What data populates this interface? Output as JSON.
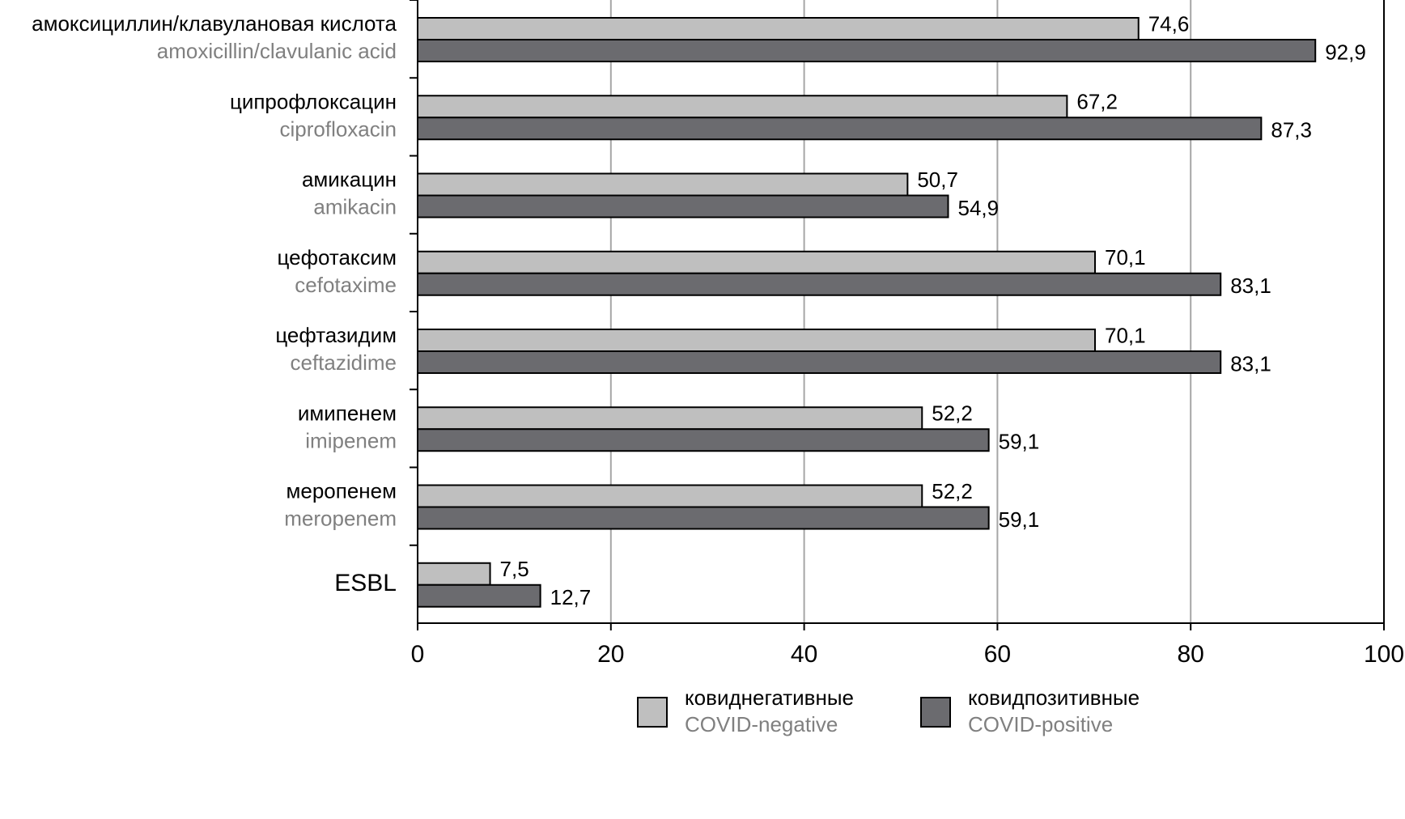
{
  "chart_data": {
    "type": "bar",
    "orientation": "horizontal",
    "categories": [
      "амоксициллин/клавулановая кислота",
      "ципрофлоксацин",
      "амикацин",
      "цефотаксим",
      "цефтазидим",
      "имипенем",
      "меропенем",
      "ESBL"
    ],
    "categories_en": [
      "amoxicillin/clavulanic acid",
      "ciprofloxacin",
      "amikacin",
      "cefotaxime",
      "ceftazidime",
      "imipenem",
      "meropenem",
      null
    ],
    "series": [
      {
        "name": "ковиднегативные",
        "name_en": "COVID-negative",
        "color": "#bfbfbf",
        "values": [
          74.6,
          67.2,
          50.7,
          70.1,
          70.1,
          52.2,
          52.2,
          7.5
        ],
        "value_labels": [
          "74,6",
          "67,2",
          "50,7",
          "70,1",
          "70,1",
          "52,2",
          "52,2",
          "7,5"
        ]
      },
      {
        "name": "ковидпозитивные",
        "name_en": "COVID-positive",
        "color": "#6b6b6f",
        "values": [
          92.9,
          87.3,
          54.9,
          83.1,
          83.1,
          59.1,
          59.1,
          12.7
        ],
        "value_labels": [
          "92,9",
          "87,3",
          "54,9",
          "83,1",
          "83,1",
          "59,1",
          "59,1",
          "12,7"
        ]
      }
    ],
    "xlim": [
      0,
      100
    ],
    "xticks": [
      0,
      20,
      40,
      60,
      80,
      100
    ],
    "grid": true
  }
}
